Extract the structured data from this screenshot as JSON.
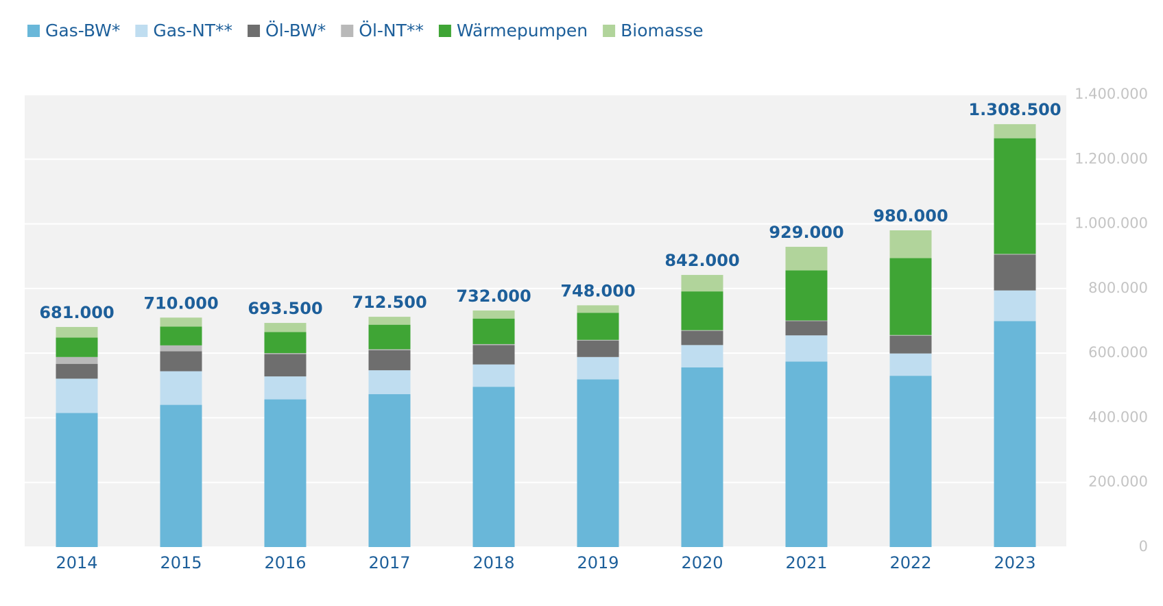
{
  "chart_data": {
    "type": "stacked_bar",
    "categories": [
      "2014",
      "2015",
      "2016",
      "2017",
      "2018",
      "2019",
      "2020",
      "2021",
      "2022",
      "2023"
    ],
    "series": [
      {
        "name": "Gas-BW*",
        "color": "#69b7d9",
        "values": [
          415000,
          440000,
          457000,
          473000,
          496000,
          519000,
          556000,
          574000,
          530000,
          699000
        ]
      },
      {
        "name": "Gas-NT**",
        "color": "#bfddf0",
        "values": [
          106000,
          104000,
          71000,
          74000,
          69000,
          69000,
          69000,
          81000,
          69000,
          95000
        ]
      },
      {
        "name": "Öl-BW*",
        "color": "#6e6e6e",
        "values": [
          46000,
          62000,
          69000,
          62000,
          60000,
          51000,
          44000,
          44000,
          55000,
          111000
        ]
      },
      {
        "name": "Öl-NT**",
        "color": "#b9b9b9",
        "values": [
          21000,
          18000,
          3000,
          3000,
          3000,
          2000,
          2000,
          2000,
          2000,
          2000
        ]
      },
      {
        "name": "Wärmepumpen",
        "color": "#3fa535",
        "values": [
          60000,
          58000,
          65500,
          76000,
          79000,
          84000,
          120000,
          155000,
          238000,
          358000
        ]
      },
      {
        "name": "Biomasse",
        "color": "#b1d49b",
        "values": [
          33000,
          28000,
          28000,
          24500,
          25000,
          23000,
          51000,
          73000,
          86000,
          43500
        ]
      }
    ],
    "totals": {
      "values": [
        681000,
        710000,
        693500,
        712500,
        732000,
        748000,
        842000,
        929000,
        980000,
        1308500
      ],
      "value_labels": [
        "681.000",
        "710.000",
        "693.500",
        "712.500",
        "732.000",
        "748.000",
        "842.000",
        "929.000",
        "980.000",
        "1.308.500"
      ]
    },
    "ylim": [
      0,
      1400000
    ],
    "yticks": [
      0,
      {
        "value": 200000,
        "label": "200.000"
      },
      {
        "value": 400000,
        "label": "400.000"
      },
      {
        "value": 600000,
        "label": "600.000"
      },
      {
        "value": 800000,
        "label": "800.000"
      },
      {
        "value": 1000000,
        "label": "1.000.000"
      },
      {
        "value": 1200000,
        "label": "1.200.000"
      },
      {
        "value": 1400000,
        "label": "1.400.000"
      }
    ],
    "y_axis_side": "right",
    "grid": true,
    "legend": "top-left"
  }
}
